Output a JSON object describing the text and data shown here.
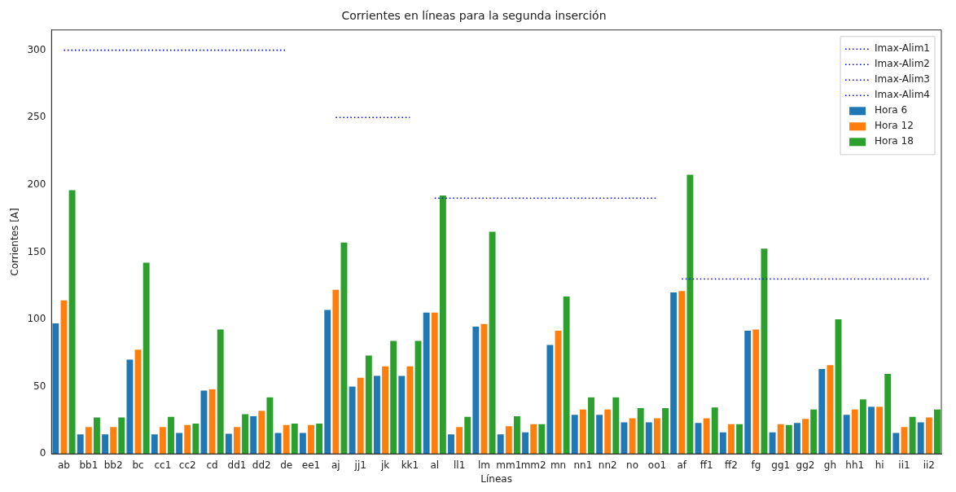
{
  "chart_data": {
    "type": "bar",
    "title": "Corrientes en líneas para la segunda inserción",
    "xlabel": "Líneas",
    "ylabel": "Corrientes [A]",
    "categories": [
      "ab",
      "bb1",
      "bb2",
      "bc",
      "cc1",
      "cc2",
      "cd",
      "dd1",
      "dd2",
      "de",
      "ee1",
      "aj",
      "jj1",
      "jk",
      "kk1",
      "al",
      "ll1",
      "lm",
      "mm1",
      "mm2",
      "mn",
      "nn1",
      "nn2",
      "no",
      "oo1",
      "af",
      "ff1",
      "ff2",
      "fg",
      "gg1",
      "gg2",
      "gh",
      "hh1",
      "hi",
      "ii1",
      "ii2"
    ],
    "series": [
      {
        "name": "Imax-Alim1",
        "type": "line",
        "line_style": "dotted",
        "marker": "none",
        "color": "#0000ff",
        "values": [
          300,
          300,
          300,
          300,
          300,
          300,
          300,
          300,
          300,
          300,
          null,
          null,
          null,
          null,
          null,
          null,
          null,
          null,
          null,
          null,
          null,
          null,
          null,
          null,
          null,
          null,
          null,
          null,
          null,
          null,
          null,
          null,
          null,
          null,
          null,
          null
        ]
      },
      {
        "name": "Imax-Alim2",
        "type": "line",
        "line_style": "dotted",
        "marker": "none",
        "color": "#0000ff",
        "values": [
          null,
          null,
          null,
          null,
          null,
          null,
          null,
          null,
          null,
          null,
          null,
          250,
          250,
          250,
          250,
          null,
          null,
          null,
          null,
          null,
          null,
          null,
          null,
          null,
          null,
          null,
          null,
          null,
          null,
          null,
          null,
          null,
          null,
          null,
          null,
          null
        ]
      },
      {
        "name": "Imax-Alim3",
        "type": "line",
        "line_style": "dotted",
        "marker": "none",
        "color": "#0000ff",
        "values": [
          null,
          null,
          null,
          null,
          null,
          null,
          null,
          null,
          null,
          null,
          null,
          null,
          null,
          null,
          null,
          190,
          190,
          190,
          190,
          190,
          190,
          190,
          190,
          190,
          190,
          null,
          null,
          null,
          null,
          null,
          null,
          null,
          null,
          null,
          null,
          null
        ]
      },
      {
        "name": "Imax-Alim4",
        "type": "line",
        "line_style": "dotted",
        "marker": "none",
        "color": "#0000ff",
        "values": [
          null,
          null,
          null,
          null,
          null,
          null,
          null,
          null,
          null,
          null,
          null,
          null,
          null,
          null,
          null,
          null,
          null,
          null,
          null,
          null,
          null,
          null,
          null,
          null,
          null,
          130,
          130,
          130,
          130,
          130,
          130,
          130,
          130,
          130,
          130,
          130
        ]
      },
      {
        "name": "Hora 6",
        "color": "#1f77b4",
        "values": [
          97,
          14.5,
          14.5,
          70,
          14.5,
          15.5,
          47,
          15,
          28,
          15.5,
          15.5,
          107,
          50,
          58,
          58,
          105,
          14.5,
          94.5,
          14.5,
          16,
          81,
          29,
          29,
          23.5,
          23.5,
          120,
          23,
          16,
          91.5,
          16,
          23,
          63,
          29,
          35,
          15.5,
          23.5
        ]
      },
      {
        "name": "Hora 12",
        "color": "#ff7f0e",
        "values": [
          114,
          20,
          20,
          77.5,
          20,
          21.5,
          48,
          20,
          32,
          21.5,
          21.5,
          122,
          56.5,
          65,
          65,
          105,
          20,
          96.5,
          20.5,
          22,
          91.5,
          33,
          33,
          26.5,
          26.5,
          121,
          26.5,
          22,
          92.5,
          22,
          26,
          66,
          33,
          35,
          20,
          27
        ]
      },
      {
        "name": "Hora 18",
        "color": "#2ca02c",
        "values": [
          196,
          27,
          27,
          142,
          27.5,
          22.5,
          92.5,
          29.5,
          42,
          22.5,
          22.5,
          157,
          73,
          84,
          84,
          192,
          27.5,
          165,
          28,
          22,
          117,
          42,
          42,
          34,
          34,
          207.5,
          34.5,
          22,
          152.5,
          21.5,
          33,
          100,
          40.5,
          59.5,
          27.5,
          33
        ]
      }
    ],
    "ylim": [
      0,
      315
    ],
    "yticks": [
      0,
      50,
      100,
      150,
      200,
      250,
      300
    ],
    "grid": false,
    "legend": "top right"
  }
}
